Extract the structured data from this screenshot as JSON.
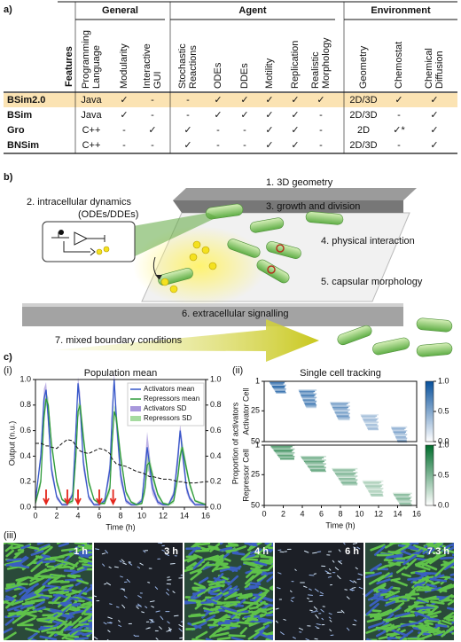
{
  "panel_labels": {
    "a": "a)",
    "b": "b)",
    "c": "c)",
    "i": "(i)",
    "ii": "(ii)",
    "iii": "(iii)"
  },
  "table": {
    "features_label": "Features",
    "groups": [
      {
        "name": "General",
        "columns": [
          [
            "Programming",
            "Language"
          ],
          [
            "Modularity"
          ],
          [
            "Interactive",
            "GUI"
          ]
        ]
      },
      {
        "name": "Agent",
        "columns": [
          [
            "Stochastic",
            "Reactions"
          ],
          [
            "ODEs"
          ],
          [
            "DDEs"
          ],
          [
            "Motility"
          ],
          [
            "Replication"
          ],
          [
            "Realistic",
            "Morphology"
          ]
        ]
      },
      {
        "name": "Environment",
        "columns": [
          [
            "Geometry"
          ],
          [
            "Chemostat"
          ],
          [
            "Chemical",
            "Diffusion"
          ]
        ]
      }
    ],
    "highlight_color": "#fbe3b3",
    "rows": [
      {
        "name": "BSim2.0",
        "highlight": true,
        "cells": [
          "Java",
          "✓",
          "-",
          "-",
          "✓",
          "✓",
          "✓",
          "✓",
          "✓",
          "2D/3D",
          "✓",
          "✓"
        ]
      },
      {
        "name": "BSim",
        "cells": [
          "Java",
          "✓",
          "-",
          "-",
          "✓",
          "✓",
          "✓",
          "✓",
          "-",
          "2D/3D",
          "-",
          "✓"
        ]
      },
      {
        "name": "Gro",
        "cells": [
          "C++",
          "-",
          "✓",
          "✓",
          "-",
          "-",
          "✓",
          "✓",
          "-",
          "2D",
          "✓*",
          "✓"
        ]
      },
      {
        "name": "BNSim",
        "cells": [
          "C++",
          "-",
          "-",
          "✓",
          "-",
          "-",
          "✓",
          "✓",
          "-",
          "2D/3D",
          "-",
          "✓"
        ]
      }
    ]
  },
  "diagram": {
    "labels": [
      [
        "1. 3D geometry"
      ],
      [
        "2. intracellular dynamics",
        "(ODEs/DDEs)"
      ],
      [
        "3. growth and division"
      ],
      [
        "4. physical interaction"
      ],
      [
        "5. capsular morphology"
      ],
      [
        "6. extracellular signalling"
      ],
      [
        "7. mixed boundary conditions"
      ]
    ]
  },
  "chart_data": [
    {
      "type": "line",
      "title": "Population mean",
      "xlabel": "Time (h)",
      "ylabel": "Output (n.u.)",
      "y2label": "Proportion of activators",
      "x": [
        0,
        0.5,
        0.8,
        1.0,
        1.2,
        1.5,
        2,
        2.5,
        3,
        3.5,
        3.8,
        4.0,
        4.2,
        4.5,
        5,
        5.5,
        6,
        6.5,
        7,
        7.2,
        7.4,
        7.6,
        8,
        8.5,
        9,
        9.5,
        10,
        10.3,
        10.5,
        10.7,
        11,
        11.5,
        12,
        12.5,
        13,
        13.4,
        13.6,
        13.8,
        14.2,
        14.5,
        15,
        16
      ],
      "xlim": [
        0,
        16
      ],
      "xticks": [
        0,
        2,
        4,
        6,
        8,
        10,
        12,
        14,
        16
      ],
      "ylim": [
        0,
        1
      ],
      "yticks": [
        {
          "value": 0,
          "label": "0.0"
        },
        {
          "value": 0.2,
          "label": "0.2"
        },
        {
          "value": 0.4,
          "label": "0.4"
        },
        {
          "value": 0.6,
          "label": "0.6"
        },
        {
          "value": 0.8,
          "label": "0.8"
        },
        {
          "value": 1,
          "label": "1.0"
        }
      ],
      "y2lim": [
        0,
        1
      ],
      "y2ticks": [
        {
          "value": 0,
          "label": "0.0"
        },
        {
          "value": 0.2,
          "label": "0.2"
        },
        {
          "value": 0.4,
          "label": "0.4"
        },
        {
          "value": 0.6,
          "label": "0.6"
        },
        {
          "value": 0.8,
          "label": "0.8"
        },
        {
          "value": 1,
          "label": "1.0"
        }
      ],
      "legend": "upper right",
      "series": [
        {
          "name": "Activators mean",
          "color": "#3657c9",
          "values": [
            0.05,
            0.4,
            0.85,
            0.92,
            0.7,
            0.3,
            0.08,
            0.02,
            0.02,
            0.1,
            0.6,
            0.97,
            0.8,
            0.35,
            0.08,
            0.02,
            0.02,
            0.05,
            0.3,
            0.7,
            1.0,
            0.7,
            0.25,
            0.05,
            0.02,
            0.02,
            0.05,
            0.3,
            0.47,
            0.35,
            0.15,
            0.04,
            0.02,
            0.02,
            0.1,
            0.4,
            0.6,
            0.45,
            0.15,
            0.07,
            0.02,
            0.02
          ]
        },
        {
          "name": "Repressors mean",
          "color": "#2e9a3a",
          "values": [
            0.03,
            0.2,
            0.7,
            0.85,
            0.8,
            0.5,
            0.2,
            0.06,
            0.03,
            0.05,
            0.4,
            0.75,
            0.8,
            0.55,
            0.2,
            0.06,
            0.03,
            0.03,
            0.15,
            0.5,
            0.75,
            0.7,
            0.4,
            0.12,
            0.04,
            0.02,
            0.03,
            0.15,
            0.33,
            0.35,
            0.25,
            0.1,
            0.03,
            0.02,
            0.05,
            0.25,
            0.4,
            0.47,
            0.3,
            0.18,
            0.05,
            0.02
          ]
        },
        {
          "name": "Activators SD",
          "color": "#a898dc",
          "style": "band",
          "values": [
            0.01,
            0.05,
            0.08,
            0.06,
            0.08,
            0.05,
            0.02,
            0.01,
            0.01,
            0.03,
            0.08,
            0.05,
            0.1,
            0.06,
            0.02,
            0.01,
            0.01,
            0.02,
            0.06,
            0.1,
            0.05,
            0.1,
            0.06,
            0.02,
            0.01,
            0.01,
            0.02,
            0.08,
            0.12,
            0.1,
            0.05,
            0.02,
            0.01,
            0.01,
            0.03,
            0.08,
            0.05,
            0.08,
            0.04,
            0.02,
            0.01,
            0.01
          ]
        },
        {
          "name": "Repressors SD",
          "color": "#a6dba0",
          "style": "band",
          "values": [
            0.01,
            0.04,
            0.06,
            0.05,
            0.06,
            0.05,
            0.03,
            0.01,
            0.01,
            0.02,
            0.05,
            0.05,
            0.06,
            0.06,
            0.03,
            0.01,
            0.01,
            0.01,
            0.04,
            0.06,
            0.05,
            0.06,
            0.05,
            0.02,
            0.01,
            0.01,
            0.01,
            0.05,
            0.06,
            0.06,
            0.04,
            0.02,
            0.01,
            0.01,
            0.02,
            0.05,
            0.05,
            0.05,
            0.04,
            0.03,
            0.01,
            0.01
          ]
        },
        {
          "color": "#111111",
          "style": "dash",
          "axis": "y2",
          "values": [
            0.5,
            0.5,
            0.49,
            0.48,
            0.48,
            0.47,
            0.46,
            0.5,
            0.53,
            0.52,
            0.48,
            0.46,
            0.44,
            0.43,
            0.42,
            0.44,
            0.46,
            0.45,
            0.42,
            0.38,
            0.36,
            0.34,
            0.33,
            0.32,
            0.3,
            0.28,
            0.27,
            0.26,
            0.25,
            0.24,
            0.24,
            0.23,
            0.22,
            0.22,
            0.21,
            0.2,
            0.2,
            0.2,
            0.19,
            0.19,
            0.19,
            0.2
          ]
        }
      ],
      "arrows": {
        "color": "#e3261c",
        "x": [
          1,
          3,
          4,
          6,
          7.3
        ]
      }
    },
    {
      "type": "heatmap",
      "title": "Single cell tracking",
      "ylabel": "Activator Cell",
      "xlim": [
        0,
        16
      ],
      "ylim": [
        1,
        50
      ],
      "yticks": [
        1,
        25,
        50
      ],
      "y_inverted": true,
      "colormap": [
        "#ffffff",
        "#08519c"
      ],
      "colorbar_ticks": [
        {
          "value": 0,
          "label": "0.0"
        },
        0.5,
        {
          "value": 1,
          "label": "1.0"
        }
      ],
      "blocks": [
        {
          "cells": [
            1,
            10
          ],
          "time": [
            0.5,
            2.3
          ],
          "value": 0.85
        },
        {
          "cells": [
            8,
            22
          ],
          "time": [
            3.6,
            5.5
          ],
          "value": 0.75
        },
        {
          "cells": [
            18,
            32
          ],
          "time": [
            6.9,
            9
          ],
          "value": 0.6
        },
        {
          "cells": [
            28,
            40
          ],
          "time": [
            10.1,
            12
          ],
          "value": 0.4
        },
        {
          "cells": [
            38,
            50
          ],
          "time": [
            13.3,
            15
          ],
          "value": 0.5
        }
      ]
    },
    {
      "type": "heatmap",
      "xlabel": "Time (h)",
      "ylabel": "Repressor Cell",
      "xlim": [
        0,
        16
      ],
      "xticks": [
        0,
        2,
        4,
        6,
        8,
        10,
        12,
        14,
        16
      ],
      "ylim": [
        1,
        50
      ],
      "yticks": [
        1,
        25,
        50
      ],
      "y_inverted": true,
      "colormap": [
        "#ffffff",
        "#006d2c"
      ],
      "colorbar_ticks": [
        {
          "value": 0,
          "label": "0.0"
        },
        0.5,
        {
          "value": 1,
          "label": "1.0"
        }
      ],
      "blocks": [
        {
          "cells": [
            1,
            12
          ],
          "time": [
            0.6,
            3.2
          ],
          "value": 0.7
        },
        {
          "cells": [
            10,
            22
          ],
          "time": [
            3.8,
            6.5
          ],
          "value": 0.6
        },
        {
          "cells": [
            20,
            33
          ],
          "time": [
            7.1,
            9.8
          ],
          "value": 0.5
        },
        {
          "cells": [
            30,
            42
          ],
          "time": [
            10.3,
            12.5
          ],
          "value": 0.35
        },
        {
          "cells": [
            40,
            50
          ],
          "time": [
            13.5,
            15.5
          ],
          "value": 0.5
        }
      ]
    }
  ],
  "snapshots": {
    "labels": [
      "1 h",
      "3 h",
      "4 h",
      "6 h",
      "7.3 h"
    ]
  }
}
